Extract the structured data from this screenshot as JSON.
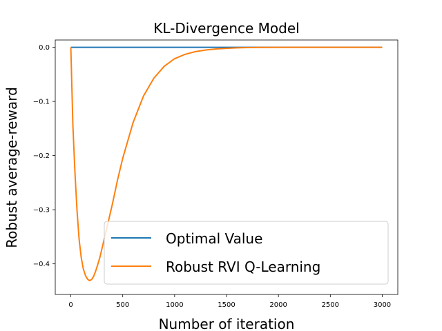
{
  "chart_data": {
    "type": "line",
    "title": "KL-Divergence Model",
    "xlabel": "Number of iteration",
    "ylabel": "Robust average-reward",
    "xlim": [
      -150,
      3150
    ],
    "ylim": [
      -0.4565,
      0.0135
    ],
    "xticks": [
      0,
      500,
      1000,
      1500,
      2000,
      2500,
      3000
    ],
    "xtick_labels": [
      "0",
      "500",
      "1000",
      "1500",
      "2000",
      "2500",
      "3000"
    ],
    "yticks": [
      0.0,
      -0.1,
      -0.2,
      -0.3,
      -0.4
    ],
    "ytick_labels": [
      "0.0",
      "−0.1",
      "−0.2",
      "−0.3",
      "−0.4"
    ],
    "grid": false,
    "legend_position": "lower-right",
    "series": [
      {
        "name": "Optimal Value",
        "color": "#1f77b4",
        "x": [
          0,
          3000
        ],
        "y": [
          0.0,
          0.0
        ]
      },
      {
        "name": "Robust RVI Q-Learning",
        "color": "#ff7f0e",
        "x": [
          0,
          20,
          40,
          60,
          80,
          100,
          120,
          140,
          160,
          180,
          200,
          220,
          240,
          260,
          280,
          300,
          350,
          400,
          450,
          500,
          600,
          700,
          800,
          900,
          1000,
          1100,
          1200,
          1300,
          1400,
          1500,
          1600,
          1700,
          1800,
          2000,
          2500,
          3000
        ],
        "y": [
          0.0,
          -0.145,
          -0.232,
          -0.302,
          -0.355,
          -0.388,
          -0.409,
          -0.421,
          -0.428,
          -0.431,
          -0.429,
          -0.423,
          -0.413,
          -0.401,
          -0.388,
          -0.372,
          -0.331,
          -0.29,
          -0.245,
          -0.205,
          -0.139,
          -0.09,
          -0.057,
          -0.035,
          -0.021,
          -0.013,
          -0.008,
          -0.005,
          -0.003,
          -0.002,
          -0.001,
          -0.0005,
          -0.0002,
          0.0,
          0.0,
          0.0
        ]
      }
    ]
  }
}
